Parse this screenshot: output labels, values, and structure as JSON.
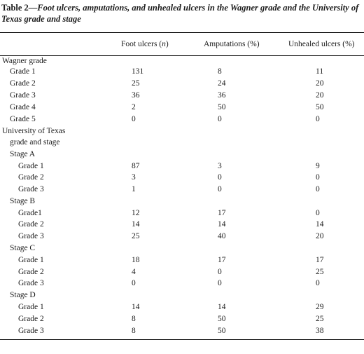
{
  "caption": {
    "table_no": "Table 2",
    "title": "Foot ulcers, amputations, and unhealed ulcers in the Wagner grade and the University of Texas grade and stage"
  },
  "columns": {
    "foot_ulcers_prefix": "Foot ulcers (",
    "foot_ulcers_n": "n",
    "foot_ulcers_suffix": ")",
    "amputations": "Amputations (%)",
    "unhealed": "Unhealed ulcers (%)"
  },
  "sections": {
    "wagner": "Wagner grade",
    "ut_line1": "University of Texas",
    "ut_line2": "grade and stage",
    "stage_a": "Stage A",
    "stage_b": "Stage B",
    "stage_c": "Stage C",
    "stage_d": "Stage D"
  },
  "rows": {
    "wagner": [
      {
        "label": "Grade 1",
        "foot_ulcers": "131",
        "amputations": "8",
        "unhealed": "11"
      },
      {
        "label": "Grade 2",
        "foot_ulcers": "25",
        "amputations": "24",
        "unhealed": "20"
      },
      {
        "label": "Grade 3",
        "foot_ulcers": "36",
        "amputations": "36",
        "unhealed": "20"
      },
      {
        "label": "Grade 4",
        "foot_ulcers": "2",
        "amputations": "50",
        "unhealed": "50"
      },
      {
        "label": "Grade 5",
        "foot_ulcers": "0",
        "amputations": "0",
        "unhealed": "0"
      }
    ],
    "stage_a": [
      {
        "label": "Grade 1",
        "foot_ulcers": "87",
        "amputations": "3",
        "unhealed": "9"
      },
      {
        "label": "Grade 2",
        "foot_ulcers": "3",
        "amputations": "0",
        "unhealed": "0"
      },
      {
        "label": "Grade 3",
        "foot_ulcers": "1",
        "amputations": "0",
        "unhealed": "0"
      }
    ],
    "stage_b": [
      {
        "label": "Grade1",
        "foot_ulcers": "12",
        "amputations": "17",
        "unhealed": "0"
      },
      {
        "label": "Grade 2",
        "foot_ulcers": "14",
        "amputations": "14",
        "unhealed": "14"
      },
      {
        "label": "Grade 3",
        "foot_ulcers": "25",
        "amputations": "40",
        "unhealed": "20"
      }
    ],
    "stage_c": [
      {
        "label": "Grade 1",
        "foot_ulcers": "18",
        "amputations": "17",
        "unhealed": "17"
      },
      {
        "label": "Grade 2",
        "foot_ulcers": "4",
        "amputations": "0",
        "unhealed": "25"
      },
      {
        "label": "Grade 3",
        "foot_ulcers": "0",
        "amputations": "0",
        "unhealed": "0"
      }
    ],
    "stage_d": [
      {
        "label": "Grade 1",
        "foot_ulcers": "14",
        "amputations": "14",
        "unhealed": "29"
      },
      {
        "label": "Grade 2",
        "foot_ulcers": "8",
        "amputations": "50",
        "unhealed": "25"
      },
      {
        "label": "Grade 3",
        "foot_ulcers": "8",
        "amputations": "50",
        "unhealed": "38"
      }
    ]
  }
}
